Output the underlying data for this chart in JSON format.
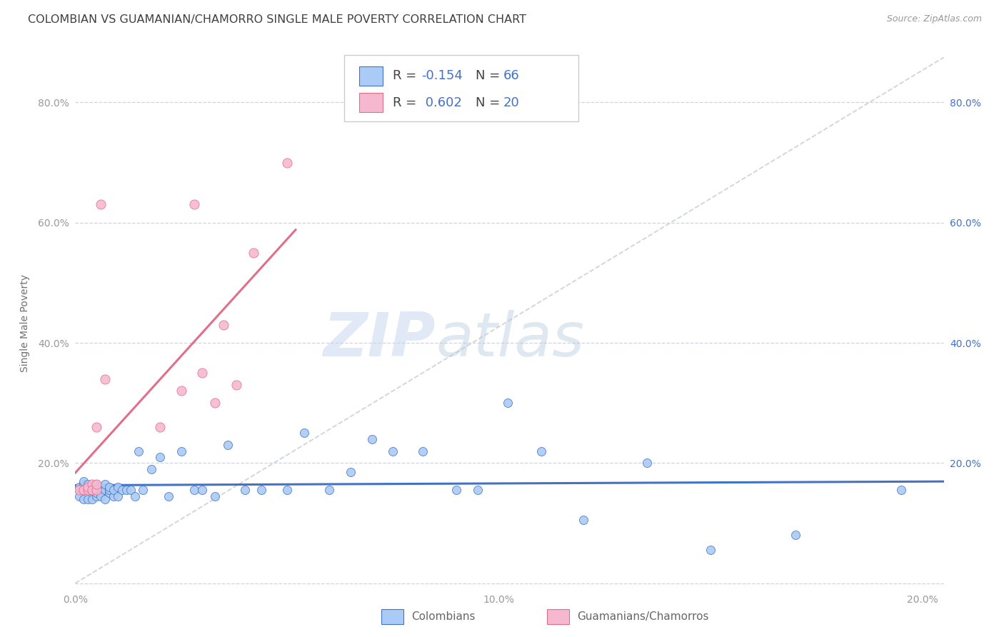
{
  "title": "COLOMBIAN VS GUAMANIAN/CHAMORRO SINGLE MALE POVERTY CORRELATION CHART",
  "source": "Source: ZipAtlas.com",
  "ylabel": "Single Male Poverty",
  "xlim": [
    0.0,
    0.205
  ],
  "ylim": [
    -0.01,
    0.875
  ],
  "xticks": [
    0.0,
    0.05,
    0.1,
    0.15,
    0.2
  ],
  "xtick_labels": [
    "0.0%",
    "",
    "10.0%",
    "",
    "20.0%"
  ],
  "ytick_positions": [
    0.0,
    0.2,
    0.4,
    0.6,
    0.8
  ],
  "ytick_labels_left": [
    "",
    "20.0%",
    "40.0%",
    "60.0%",
    "80.0%"
  ],
  "ytick_labels_right": [
    "",
    "20.0%",
    "40.0%",
    "60.0%",
    "80.0%"
  ],
  "colombian_color": "#aacbf5",
  "guamanian_color": "#f5b8cf",
  "colombian_line_color": "#4472c4",
  "guamanian_line_color": "#e0708a",
  "diagonal_color": "#c8ccd8",
  "R_colombian": -0.154,
  "N_colombian": 66,
  "R_guamanian": 0.602,
  "N_guamanian": 20,
  "legend_label_colombian": "Colombians",
  "legend_label_guamanian": "Guamanians/Chamorros",
  "watermark_zip": "ZIP",
  "watermark_atlas": "atlas",
  "colombian_x": [
    0.001,
    0.001,
    0.001,
    0.002,
    0.002,
    0.002,
    0.002,
    0.003,
    0.003,
    0.003,
    0.003,
    0.004,
    0.004,
    0.004,
    0.004,
    0.005,
    0.005,
    0.005,
    0.005,
    0.005,
    0.006,
    0.006,
    0.006,
    0.006,
    0.007,
    0.007,
    0.007,
    0.008,
    0.008,
    0.008,
    0.009,
    0.009,
    0.01,
    0.01,
    0.011,
    0.012,
    0.013,
    0.014,
    0.015,
    0.016,
    0.018,
    0.02,
    0.022,
    0.025,
    0.028,
    0.03,
    0.033,
    0.036,
    0.04,
    0.044,
    0.05,
    0.054,
    0.06,
    0.065,
    0.07,
    0.075,
    0.082,
    0.09,
    0.095,
    0.102,
    0.11,
    0.12,
    0.135,
    0.15,
    0.17,
    0.195
  ],
  "colombian_y": [
    0.155,
    0.145,
    0.16,
    0.14,
    0.155,
    0.165,
    0.17,
    0.14,
    0.155,
    0.165,
    0.155,
    0.15,
    0.14,
    0.16,
    0.155,
    0.145,
    0.15,
    0.16,
    0.155,
    0.165,
    0.15,
    0.155,
    0.145,
    0.16,
    0.155,
    0.165,
    0.14,
    0.15,
    0.155,
    0.16,
    0.145,
    0.155,
    0.16,
    0.145,
    0.155,
    0.155,
    0.155,
    0.145,
    0.22,
    0.155,
    0.19,
    0.21,
    0.145,
    0.22,
    0.155,
    0.155,
    0.145,
    0.23,
    0.155,
    0.155,
    0.155,
    0.25,
    0.155,
    0.185,
    0.24,
    0.22,
    0.22,
    0.155,
    0.155,
    0.3,
    0.22,
    0.105,
    0.2,
    0.055,
    0.08,
    0.155
  ],
  "guamanian_x": [
    0.001,
    0.002,
    0.003,
    0.003,
    0.004,
    0.004,
    0.005,
    0.005,
    0.005,
    0.006,
    0.007,
    0.02,
    0.025,
    0.028,
    0.03,
    0.033,
    0.035,
    0.038,
    0.042,
    0.05
  ],
  "guamanian_y": [
    0.155,
    0.155,
    0.155,
    0.16,
    0.165,
    0.155,
    0.26,
    0.155,
    0.165,
    0.63,
    0.34,
    0.26,
    0.32,
    0.63,
    0.35,
    0.3,
    0.43,
    0.33,
    0.55,
    0.7
  ],
  "point_size_colombian": 75,
  "point_size_guamanian": 90,
  "background_color": "#ffffff",
  "grid_color": "#d0d4dc",
  "title_color": "#404040",
  "axis_label_color": "#707070",
  "tick_label_color_left": "#999999",
  "tick_label_color_right": "#4472c4",
  "source_color": "#999999"
}
